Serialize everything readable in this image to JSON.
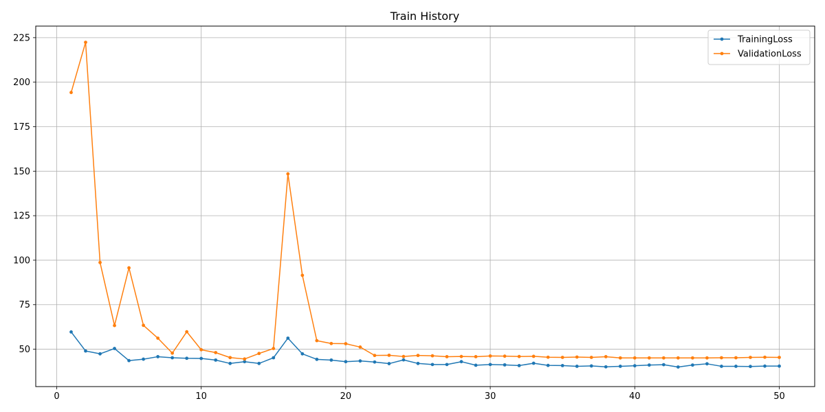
{
  "chart_data": {
    "type": "line",
    "title": "Train History",
    "xlabel": "",
    "ylabel": "",
    "xlim": [
      -1.45,
      52.45
    ],
    "ylim": [
      29.0,
      231.5
    ],
    "xticks": [
      0,
      10,
      20,
      30,
      40,
      50
    ],
    "yticks": [
      50,
      75,
      100,
      125,
      150,
      175,
      200,
      225
    ],
    "grid": true,
    "legend_position": "top-right",
    "x": [
      1,
      2,
      3,
      4,
      5,
      6,
      7,
      8,
      9,
      10,
      11,
      12,
      13,
      14,
      15,
      16,
      17,
      18,
      19,
      20,
      21,
      22,
      23,
      24,
      25,
      26,
      27,
      28,
      29,
      30,
      31,
      32,
      33,
      34,
      35,
      36,
      37,
      38,
      39,
      40,
      41,
      42,
      43,
      44,
      45,
      46,
      47,
      48,
      49,
      50
    ],
    "series": [
      {
        "name": "TrainingLoss",
        "color": "#1f77b4",
        "values": [
          59.7,
          49.0,
          47.4,
          50.4,
          43.6,
          44.4,
          45.8,
          45.2,
          44.9,
          44.8,
          43.9,
          42.0,
          43.0,
          42.0,
          45.2,
          56.2,
          47.4,
          44.3,
          43.9,
          43.0,
          43.4,
          42.8,
          41.9,
          44.0,
          42.0,
          41.4,
          41.4,
          43.0,
          41.0,
          41.4,
          41.2,
          40.8,
          42.1,
          40.9,
          40.8,
          40.4,
          40.6,
          40.1,
          40.4,
          40.7,
          41.1,
          41.3,
          40.0,
          41.1,
          41.8,
          40.4,
          40.4,
          40.3,
          40.5,
          40.5
        ]
      },
      {
        "name": "ValidationLoss",
        "color": "#ff7f0e",
        "values": [
          194.2,
          222.4,
          98.7,
          63.3,
          95.7,
          63.4,
          56.2,
          47.8,
          59.8,
          49.7,
          48.1,
          45.3,
          44.5,
          47.6,
          50.4,
          148.5,
          91.5,
          54.8,
          53.2,
          53.1,
          51.2,
          46.5,
          46.6,
          45.9,
          46.5,
          46.3,
          45.8,
          45.9,
          45.8,
          46.2,
          46.1,
          45.9,
          46.0,
          45.5,
          45.4,
          45.6,
          45.4,
          45.8,
          45.1,
          45.1,
          45.1,
          45.1,
          45.1,
          45.1,
          45.1,
          45.2,
          45.2,
          45.4,
          45.5,
          45.4
        ]
      }
    ]
  }
}
